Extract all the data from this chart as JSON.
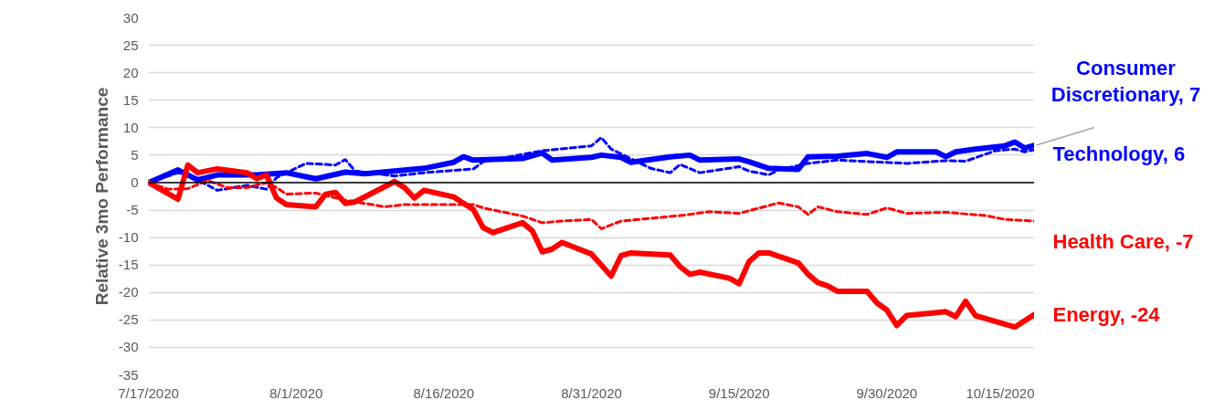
{
  "chart_data": {
    "type": "line",
    "ylabel": "Relative 3mo Performance",
    "xlim": [
      "2020-07-17",
      "2020-10-15"
    ],
    "xticks": [
      {
        "value": "2020-07-17",
        "label": "7/17/2020"
      },
      {
        "value": "2020-08-01",
        "label": "8/1/2020"
      },
      {
        "value": "2020-08-16",
        "label": "8/16/2020"
      },
      {
        "value": "2020-08-31",
        "label": "8/31/2020"
      },
      {
        "value": "2020-09-15",
        "label": "9/15/2020"
      },
      {
        "value": "2020-09-30",
        "label": "9/30/2020"
      },
      {
        "value": "2020-10-15",
        "label": "10/15/2020"
      }
    ],
    "ylim": [
      -35,
      30
    ],
    "yticks": [
      -35,
      -30,
      -25,
      -20,
      -15,
      -10,
      -5,
      0,
      5,
      10,
      15,
      20,
      25,
      30
    ],
    "grid": "y",
    "legend": false,
    "ref_lines": [
      {
        "axis": "y",
        "value": 0,
        "color": "#000000"
      }
    ],
    "series": [
      {
        "name": "Consumer Discretionary, 7",
        "color": "#0000ff",
        "line_style": "solid",
        "x": [
          "2020-07-17",
          "2020-07-20",
          "2020-07-22",
          "2020-07-24",
          "2020-07-28",
          "2020-07-31",
          "2020-08-03",
          "2020-08-06",
          "2020-08-08",
          "2020-08-11",
          "2020-08-14",
          "2020-08-17",
          "2020-08-18",
          "2020-08-19",
          "2020-08-24",
          "2020-08-26",
          "2020-08-27",
          "2020-08-31",
          "2020-09-01",
          "2020-09-03",
          "2020-09-04",
          "2020-09-08",
          "2020-09-10",
          "2020-09-11",
          "2020-09-15",
          "2020-09-16",
          "2020-09-18",
          "2020-09-21",
          "2020-09-22",
          "2020-09-25",
          "2020-09-28",
          "2020-09-30",
          "2020-10-01",
          "2020-10-05",
          "2020-10-06",
          "2020-10-07",
          "2020-10-09",
          "2020-10-12",
          "2020-10-13",
          "2020-10-14",
          "2020-10-15"
        ],
        "values": [
          0,
          2.3,
          0.5,
          1.4,
          1.4,
          1.8,
          0.7,
          1.9,
          1.6,
          2.1,
          2.6,
          3.7,
          4.7,
          4.1,
          4.4,
          5.4,
          4.1,
          4.6,
          5,
          4.6,
          3.7,
          4.7,
          5,
          4.1,
          4.3,
          3.8,
          2.6,
          2.4,
          4.7,
          4.8,
          5.3,
          4.6,
          5.6,
          5.6,
          4.7,
          5.6,
          6.1,
          6.7,
          7.4,
          6.3,
          6.8
        ]
      },
      {
        "name": "Technology, 6",
        "color": "#0000ff",
        "line_style": "dashed",
        "x": [
          "2020-07-17",
          "2020-07-20",
          "2020-07-22",
          "2020-07-24",
          "2020-07-27",
          "2020-07-29",
          "2020-07-30",
          "2020-08-02",
          "2020-08-05",
          "2020-08-06",
          "2020-08-07",
          "2020-08-11",
          "2020-08-14",
          "2020-08-19",
          "2020-08-20",
          "2020-08-26",
          "2020-08-31",
          "2020-09-01",
          "2020-09-02",
          "2020-09-06",
          "2020-09-08",
          "2020-09-09",
          "2020-09-11",
          "2020-09-15",
          "2020-09-16",
          "2020-09-18",
          "2020-09-19",
          "2020-09-22",
          "2020-09-25",
          "2020-10-02",
          "2020-10-06",
          "2020-10-08",
          "2020-10-11",
          "2020-10-13",
          "2020-10-14",
          "2020-10-15"
        ],
        "values": [
          0,
          1.8,
          0.5,
          -1.4,
          -0.5,
          -1.2,
          0.9,
          3.5,
          3.2,
          4.2,
          2.1,
          1.2,
          1.8,
          2.5,
          3.8,
          5.8,
          6.7,
          8.2,
          6.1,
          2.6,
          1.8,
          3.3,
          1.8,
          2.9,
          2.1,
          1.4,
          2.3,
          3.5,
          4.1,
          3.5,
          4,
          3.9,
          5.8,
          6.1,
          5.6,
          6.0
        ]
      },
      {
        "name": "Health Care, -7",
        "color": "#ff0000",
        "line_style": "dashed",
        "x": [
          "2020-07-17",
          "2020-07-19",
          "2020-07-21",
          "2020-07-23",
          "2020-07-25",
          "2020-07-27",
          "2020-07-29",
          "2020-07-30",
          "2020-07-31",
          "2020-08-03",
          "2020-08-06",
          "2020-08-10",
          "2020-08-12",
          "2020-08-17",
          "2020-08-19",
          "2020-08-20",
          "2020-08-24",
          "2020-08-26",
          "2020-08-28",
          "2020-08-31",
          "2020-09-01",
          "2020-09-03",
          "2020-09-09",
          "2020-09-12",
          "2020-09-15",
          "2020-09-19",
          "2020-09-21",
          "2020-09-22",
          "2020-09-23",
          "2020-09-25",
          "2020-09-28",
          "2020-09-30",
          "2020-10-02",
          "2020-10-06",
          "2020-10-10",
          "2020-10-12",
          "2020-10-15"
        ],
        "values": [
          0,
          -1.2,
          -1.1,
          0.4,
          -0.9,
          -0.9,
          0,
          -0.9,
          -2.1,
          -1.9,
          -3.2,
          -4.4,
          -4,
          -4,
          -4,
          -4.6,
          -6.1,
          -7.3,
          -7,
          -6.7,
          -8.4,
          -7,
          -6,
          -5.3,
          -5.6,
          -3.7,
          -4.4,
          -5.8,
          -4.4,
          -5.3,
          -5.8,
          -4.6,
          -5.6,
          -5.4,
          -6,
          -6.7,
          -7
        ]
      },
      {
        "name": "Energy, -24",
        "color": "#ff0000",
        "line_style": "solid",
        "x": [
          "2020-07-17",
          "2020-07-20",
          "2020-07-21",
          "2020-07-22",
          "2020-07-24",
          "2020-07-27",
          "2020-07-28",
          "2020-07-29",
          "2020-07-30",
          "2020-07-31",
          "2020-08-03",
          "2020-08-04",
          "2020-08-05",
          "2020-08-06",
          "2020-08-07",
          "2020-08-11",
          "2020-08-12",
          "2020-08-13",
          "2020-08-14",
          "2020-08-17",
          "2020-08-19",
          "2020-08-20",
          "2020-08-21",
          "2020-08-24",
          "2020-08-25",
          "2020-08-26",
          "2020-08-27",
          "2020-08-28",
          "2020-08-31",
          "2020-09-02",
          "2020-09-03",
          "2020-09-04",
          "2020-09-08",
          "2020-09-09",
          "2020-09-10",
          "2020-09-11",
          "2020-09-14",
          "2020-09-15",
          "2020-09-16",
          "2020-09-17",
          "2020-09-18",
          "2020-09-21",
          "2020-09-22",
          "2020-09-23",
          "2020-09-24",
          "2020-09-25",
          "2020-09-28",
          "2020-09-29",
          "2020-09-30",
          "2020-10-01",
          "2020-10-02",
          "2020-10-06",
          "2020-10-07",
          "2020-10-08",
          "2020-10-09",
          "2020-10-13",
          "2020-10-15"
        ],
        "values": [
          0,
          -3,
          3.2,
          1.8,
          2.5,
          1.8,
          0.7,
          1.4,
          -2.8,
          -4,
          -4.4,
          -2.1,
          -1.8,
          -3.8,
          -3.5,
          0.2,
          -0.9,
          -2.8,
          -1.4,
          -2.6,
          -4.9,
          -8.2,
          -9.1,
          -7.3,
          -8.8,
          -12.6,
          -12.1,
          -10.9,
          -13,
          -17,
          -13.3,
          -12.8,
          -13.2,
          -15.3,
          -16.7,
          -16.3,
          -17.4,
          -18.4,
          -14.4,
          -12.8,
          -12.8,
          -14.6,
          -16.7,
          -18.2,
          -18.8,
          -19.8,
          -19.8,
          -21.9,
          -23.2,
          -26,
          -24.2,
          -23.5,
          -24.4,
          -21.6,
          -24.2,
          -26.3,
          -24
        ]
      }
    ]
  }
}
